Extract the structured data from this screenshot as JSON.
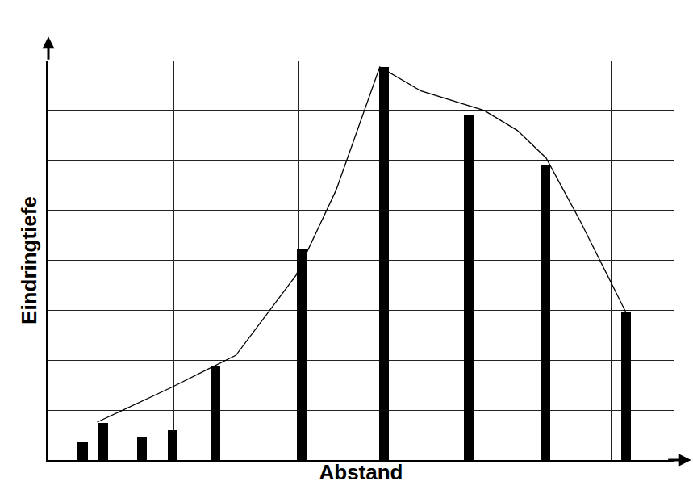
{
  "chart_data": {
    "type": "bar",
    "x_label": "Abstand",
    "y_label": "Eindringtiefe",
    "xlim": [
      0,
      10
    ],
    "xticks": [
      0,
      1,
      2,
      3,
      4,
      5,
      6,
      7,
      8,
      9,
      10
    ],
    "ylim": [
      0,
      8
    ],
    "yticks": [
      0,
      1,
      2,
      3,
      4,
      5,
      6,
      7,
      8
    ],
    "grid": true,
    "tick_labels": false,
    "series": [
      {
        "type": "bar",
        "color": "#000000",
        "x": [
          0.55,
          0.87,
          1.5,
          1.99,
          2.67,
          4.05,
          5.37,
          6.73,
          7.95,
          9.24
        ],
        "values": [
          0.35,
          0.75,
          0.45,
          0.6,
          1.89,
          4.23,
          7.87,
          6.9,
          5.92,
          2.95
        ]
      },
      {
        "type": "line",
        "color": "#000000",
        "x": [
          0.78,
          1.96,
          3.0,
          3.96,
          4.6,
          5.3,
          5.96,
          6.97,
          7.5,
          7.96,
          8.5,
          9.24
        ],
        "values": [
          0.76,
          1.45,
          2.1,
          3.7,
          5.4,
          7.87,
          7.39,
          7.0,
          6.6,
          6.05,
          4.8,
          2.95
        ]
      }
    ]
  }
}
